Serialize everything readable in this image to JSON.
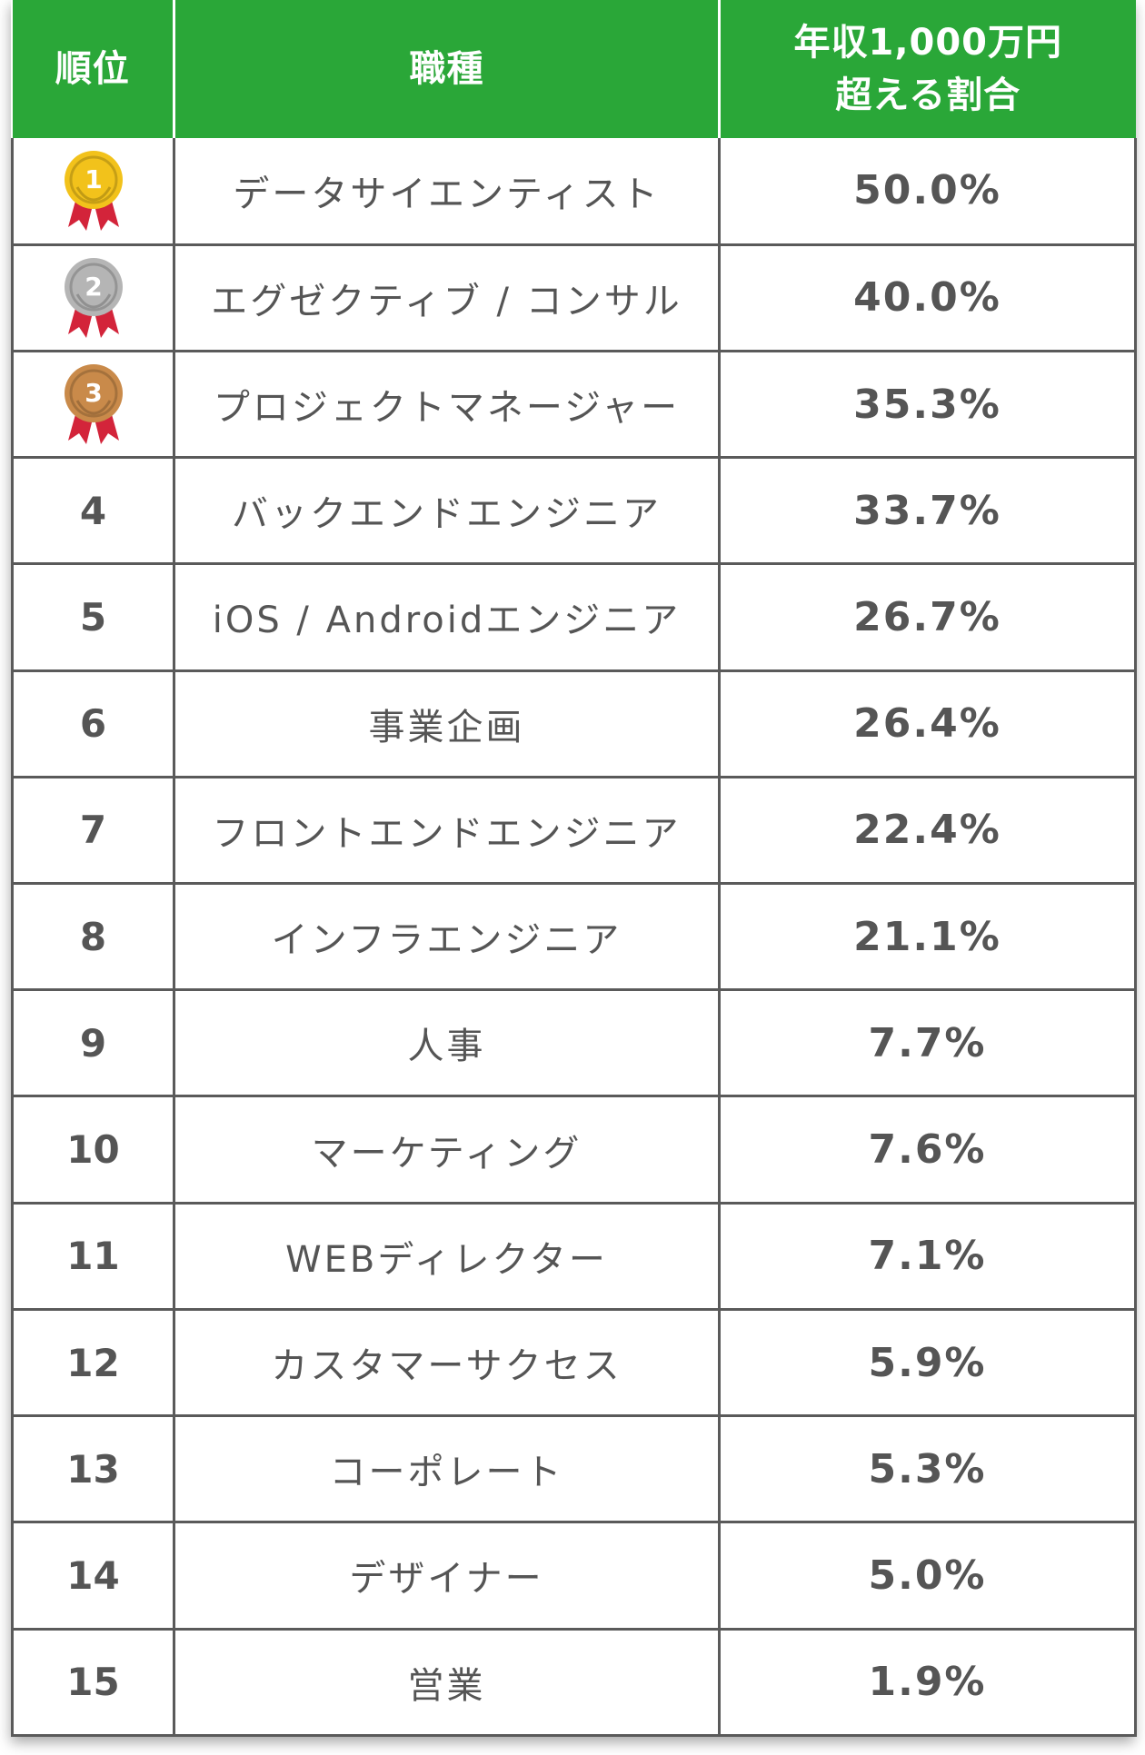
{
  "header": {
    "rank": "順位",
    "job": "職種",
    "ratio_line1": "年収1,000万円",
    "ratio_line2": "超える割合"
  },
  "medal_colors": {
    "gold": "#f2c21b",
    "silver": "#b5b5b5",
    "bronze": "#c98a4a",
    "ribbon": "#d3243a"
  },
  "rows": [
    {
      "rank": "1",
      "job": "データサイエンティスト",
      "pct": "50.0%",
      "medal": "gold"
    },
    {
      "rank": "2",
      "job": "エグゼクティブ / コンサル",
      "pct": "40.0%",
      "medal": "silver"
    },
    {
      "rank": "3",
      "job": "プロジェクトマネージャー",
      "pct": "35.3%",
      "medal": "bronze"
    },
    {
      "rank": "4",
      "job": "バックエンドエンジニア",
      "pct": "33.7%"
    },
    {
      "rank": "5",
      "job": "iOS / Androidエンジニア",
      "pct": "26.7%"
    },
    {
      "rank": "6",
      "job": "事業企画",
      "pct": "26.4%"
    },
    {
      "rank": "7",
      "job": "フロントエンドエンジニア",
      "pct": "22.4%"
    },
    {
      "rank": "8",
      "job": "インフラエンジニア",
      "pct": "21.1%"
    },
    {
      "rank": "9",
      "job": "人事",
      "pct": "7.7%"
    },
    {
      "rank": "10",
      "job": "マーケティング",
      "pct": "7.6%"
    },
    {
      "rank": "11",
      "job": "WEBディレクター",
      "pct": "7.1%"
    },
    {
      "rank": "12",
      "job": "カスタマーサクセス",
      "pct": "5.9%"
    },
    {
      "rank": "13",
      "job": "コーポレート",
      "pct": "5.3%"
    },
    {
      "rank": "14",
      "job": "デザイナー",
      "pct": "5.0%"
    },
    {
      "rank": "15",
      "job": "営業",
      "pct": "1.9%"
    }
  ]
}
